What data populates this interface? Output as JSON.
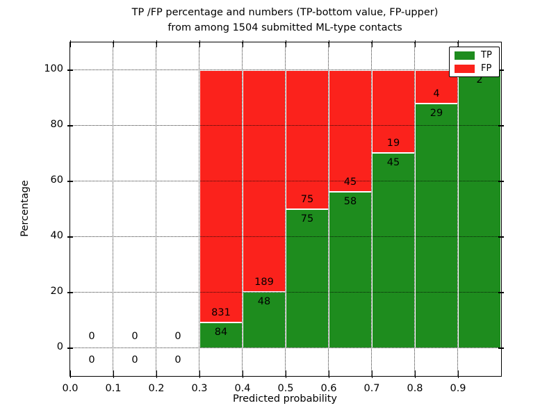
{
  "figure": {
    "title_line1": "TP /FP percentage and numbers (TP-bottom value, FP-upper)",
    "title_line2": "from among 1504 submitted ML-type contacts"
  },
  "chart_data": {
    "type": "bar",
    "stacked": true,
    "normalized_to": "percentage of bin total (TP bottom, FP top)",
    "title": "TP /FP percentage and numbers (TP-bottom value, FP-upper) from among 1504 submitted ML-type contacts",
    "xlabel": "Predicted probability",
    "ylabel": "Percentage",
    "total_contacts": 1504,
    "xlim": [
      0.0,
      1.0
    ],
    "ylim": [
      -10,
      110
    ],
    "grid": true,
    "x_ticks": [
      "0.0",
      "0.1",
      "0.2",
      "0.3",
      "0.4",
      "0.5",
      "0.6",
      "0.7",
      "0.8",
      "0.9"
    ],
    "y_ticks": [
      0,
      20,
      40,
      60,
      80,
      100
    ],
    "colors": {
      "tp": "#1e8c1e",
      "fp": "#fb221c"
    },
    "legend": {
      "position": "upper right",
      "entries": [
        {
          "label": "TP",
          "color": "#1e8c1e"
        },
        {
          "label": "FP",
          "color": "#fb221c"
        }
      ]
    },
    "bins": [
      {
        "x0": 0.0,
        "x1": 0.1,
        "tp": 0,
        "fp": 0
      },
      {
        "x0": 0.1,
        "x1": 0.2,
        "tp": 0,
        "fp": 0
      },
      {
        "x0": 0.2,
        "x1": 0.3,
        "tp": 0,
        "fp": 0
      },
      {
        "x0": 0.3,
        "x1": 0.4,
        "tp": 84,
        "fp": 831
      },
      {
        "x0": 0.4,
        "x1": 0.5,
        "tp": 48,
        "fp": 189
      },
      {
        "x0": 0.5,
        "x1": 0.6,
        "tp": 75,
        "fp": 75
      },
      {
        "x0": 0.6,
        "x1": 0.7,
        "tp": 58,
        "fp": 45
      },
      {
        "x0": 0.7,
        "x1": 0.8,
        "tp": 45,
        "fp": 19
      },
      {
        "x0": 0.8,
        "x1": 0.9,
        "tp": 29,
        "fp": 4
      },
      {
        "x0": 0.9,
        "x1": 1.0,
        "tp": 2,
        "fp": 0
      }
    ]
  }
}
